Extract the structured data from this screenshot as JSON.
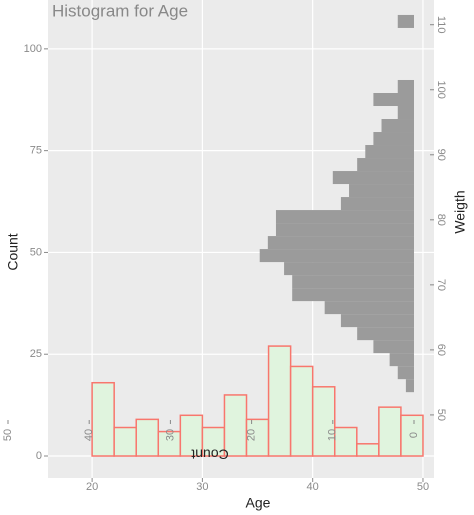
{
  "chart_data": [
    {
      "type": "histogram",
      "title": "Histogram for Age",
      "xlabel": "Age",
      "ylabel": "Count",
      "bins": [
        20,
        22,
        24,
        26,
        28,
        30,
        32,
        34,
        36,
        38,
        40,
        42,
        44,
        46,
        48,
        50
      ],
      "values": [
        18,
        7,
        9,
        6,
        10,
        7,
        15,
        9,
        27,
        22,
        17,
        7,
        3,
        12,
        10
      ],
      "color": "#e0f4de",
      "edge_color": "#f8766d",
      "xlim": [
        16,
        51
      ],
      "xticks": [
        20,
        30,
        40,
        50
      ],
      "ylim": [
        -5.4,
        112
      ],
      "yticks": [
        0,
        25,
        50,
        75,
        100
      ],
      "grid": true
    },
    {
      "type": "histogram",
      "orientation": "horizontal",
      "xlabel": "Count",
      "ylabel": "Weigth",
      "bins": [
        53.5,
        55.5,
        57.5,
        59.5,
        61.5,
        63.5,
        65.5,
        67.5,
        69.5,
        71.5,
        73.5,
        75.5,
        77.5,
        79.5,
        81.5,
        83.5,
        85.5,
        87.5,
        89.5,
        91.5,
        93.5,
        95.5,
        97.5,
        99.5,
        101.5,
        103.5,
        105.5,
        107.5,
        109.5,
        111.5
      ],
      "values": [
        1,
        2,
        3,
        5,
        7,
        9,
        11,
        15,
        15,
        16,
        19,
        18,
        17,
        17,
        9,
        8,
        10,
        7,
        6,
        5,
        4,
        2,
        5,
        2,
        0,
        0,
        0,
        0,
        2
      ],
      "color": "#9b9b9b",
      "x_reversed": true,
      "xlim": [
        0,
        50
      ],
      "xticks": [
        0,
        10,
        20,
        30,
        40,
        50
      ],
      "ylim": [
        40.3,
        113.8
      ],
      "yticks": [
        50,
        60,
        70,
        80,
        90,
        100,
        110
      ]
    }
  ]
}
